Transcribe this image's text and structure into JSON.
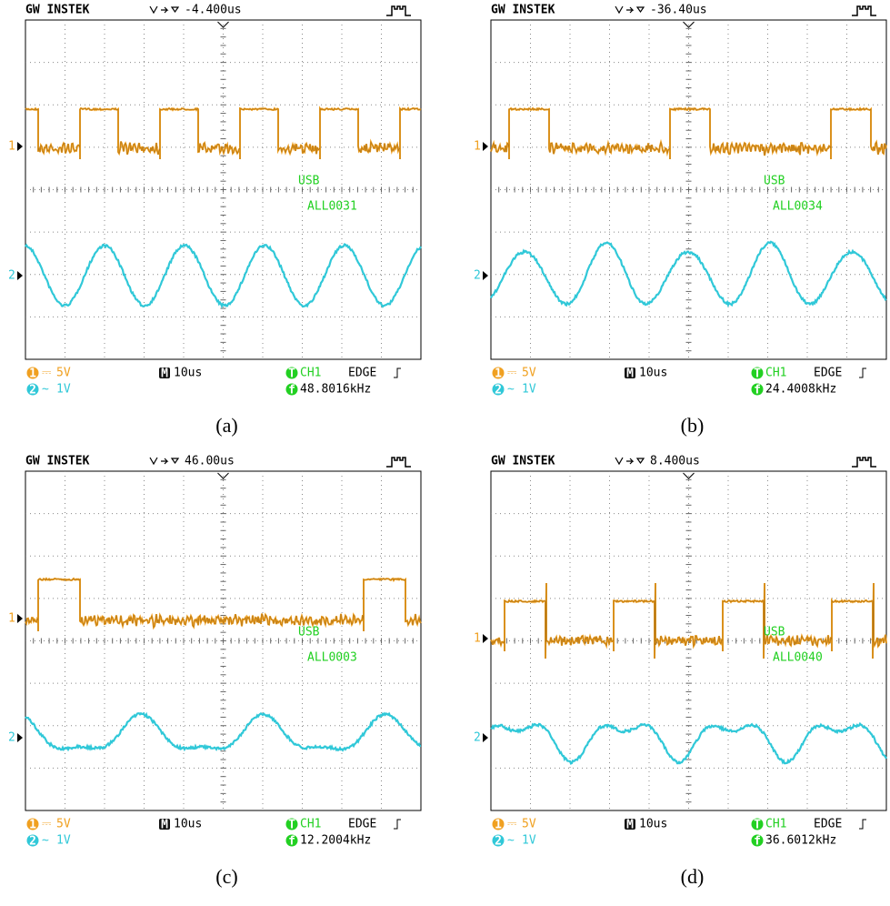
{
  "panels": [
    {
      "brand": "GW INSTEK",
      "offset": "-4.400us",
      "ch1": "1",
      "ch2": "2",
      "usb": "USB",
      "file": "ALL0031",
      "ch1_coupling": "⎓",
      "ch1_scale": "5V",
      "ch2_coupling": "∼",
      "ch2_scale": "1V",
      "timebase_icon": "M",
      "timebase": "10us",
      "trigger_icon": "T",
      "trigger_source": "CH1",
      "trigger_type": "EDGE",
      "freq_icon": "f",
      "frequency": "48.8016kHz",
      "caption": "(a)"
    },
    {
      "brand": "GW INSTEK",
      "offset": "-36.40us",
      "ch1": "1",
      "ch2": "2",
      "usb": "USB",
      "file": "ALL0034",
      "ch1_coupling": "⎓",
      "ch1_scale": "5V",
      "ch2_coupling": "∼",
      "ch2_scale": "1V",
      "timebase_icon": "M",
      "timebase": "10us",
      "trigger_icon": "T",
      "trigger_source": "CH1",
      "trigger_type": "EDGE",
      "freq_icon": "f",
      "frequency": "24.4008kHz",
      "caption": "(b)"
    },
    {
      "brand": "GW INSTEK",
      "offset": "46.00us",
      "ch1": "1",
      "ch2": "2",
      "usb": "USB",
      "file": "ALL0003",
      "ch1_coupling": "⎓",
      "ch1_scale": "5V",
      "ch2_coupling": "∼",
      "ch2_scale": "1V",
      "timebase_icon": "M",
      "timebase": "10us",
      "trigger_icon": "T",
      "trigger_source": "CH1",
      "trigger_type": "EDGE",
      "freq_icon": "f",
      "frequency": "12.2004kHz",
      "caption": "(c)"
    },
    {
      "brand": "GW INSTEK",
      "offset": "8.400us",
      "ch1": "1",
      "ch2": "2",
      "usb": "USB",
      "file": "ALL0040",
      "ch1_coupling": "⎓",
      "ch1_scale": "5V",
      "ch2_coupling": "∼",
      "ch2_scale": "1V",
      "timebase_icon": "M",
      "timebase": "10us",
      "trigger_icon": "T",
      "trigger_source": "CH1",
      "trigger_type": "EDGE",
      "freq_icon": "f",
      "frequency": "36.6012kHz",
      "caption": "(d)"
    }
  ]
}
